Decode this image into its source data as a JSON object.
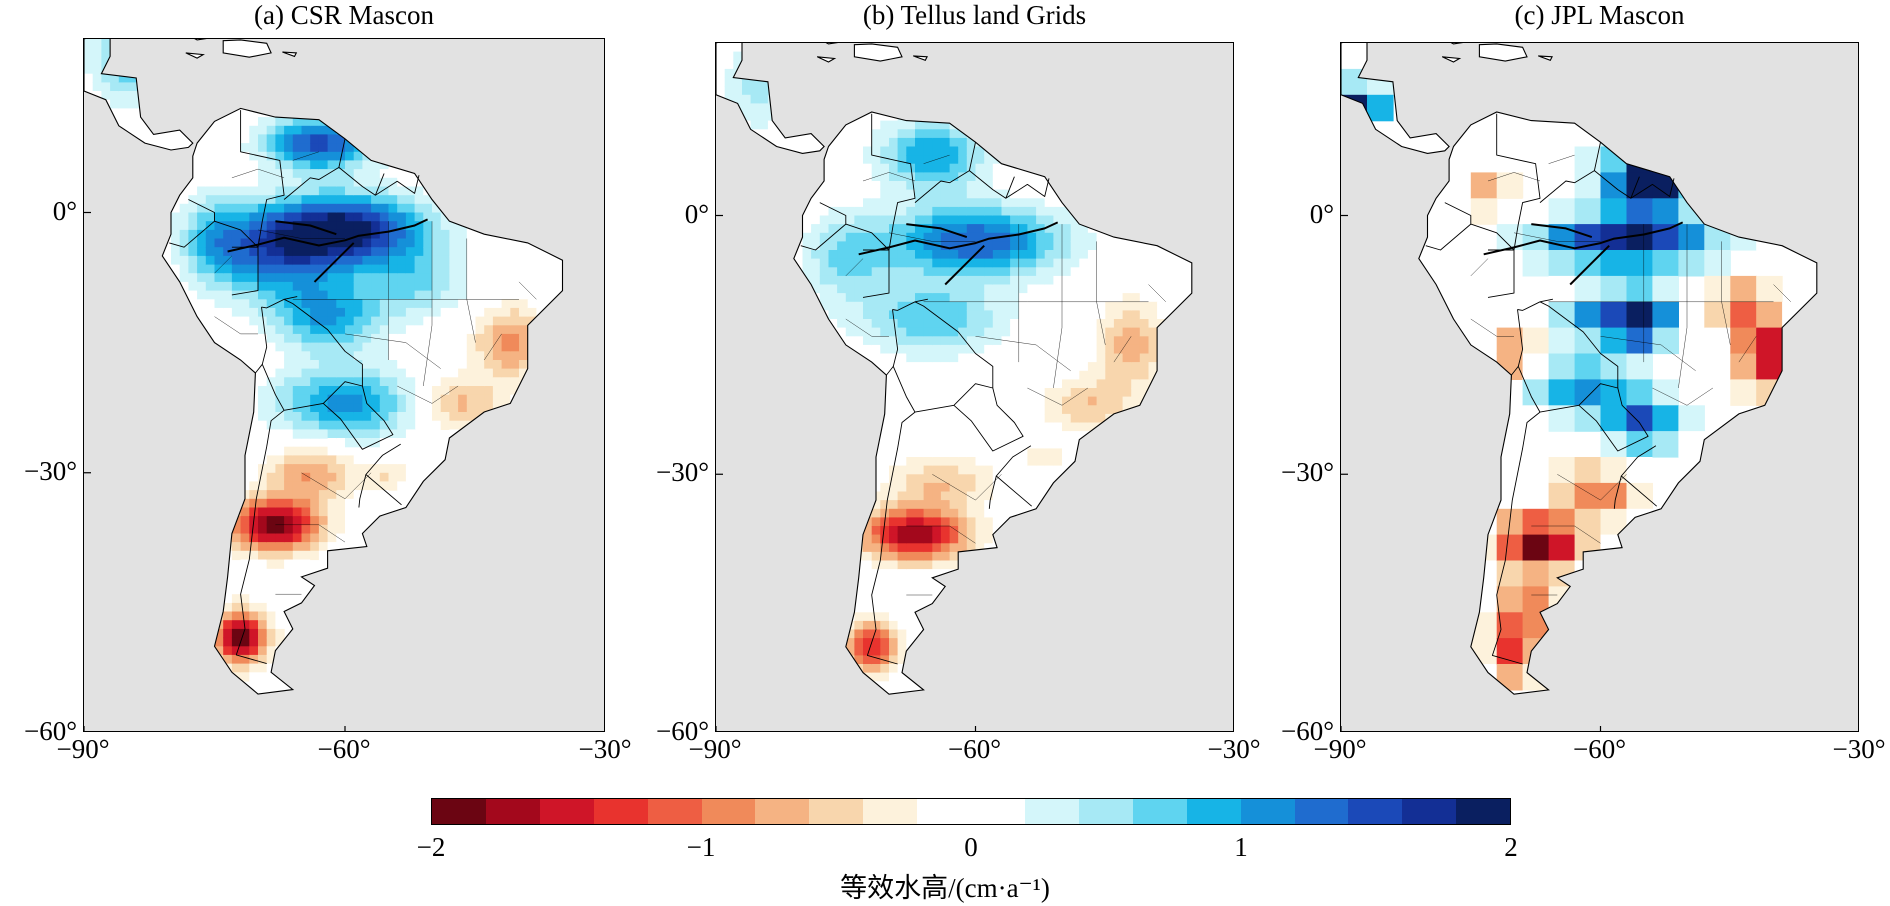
{
  "panels": [
    {
      "title": "(a) CSR Mascon",
      "style": "smooth",
      "blobs": [
        [
          -60,
          -2,
          9,
          4,
          1.9
        ],
        [
          -63,
          8,
          6,
          3,
          1.5
        ],
        [
          -68,
          -5,
          7,
          5,
          1.1
        ],
        [
          -62,
          -12,
          6,
          4,
          1.0
        ],
        [
          -60,
          -22,
          8,
          4,
          1.1
        ],
        [
          -75,
          -3,
          4,
          5,
          0.7
        ],
        [
          -52,
          -8,
          6,
          4,
          0.6
        ],
        [
          -85,
          18,
          4,
          5,
          0.8
        ],
        [
          -41,
          -15,
          4,
          4,
          -0.9
        ],
        [
          -47,
          -22,
          5,
          3,
          -0.7
        ],
        [
          -68,
          -36,
          5,
          3,
          -2.0
        ],
        [
          -64,
          -30,
          5,
          3,
          -0.8
        ],
        [
          -72,
          -49,
          3,
          3,
          -2.0
        ],
        [
          -55,
          -30,
          3,
          2,
          -0.4
        ]
      ]
    },
    {
      "title": "(b) Tellus land Grids",
      "style": "smooth",
      "blobs": [
        [
          -60,
          -3,
          10,
          4,
          1.4
        ],
        [
          -65,
          7,
          6,
          4,
          1.0
        ],
        [
          -65,
          -12,
          8,
          4,
          0.8
        ],
        [
          -75,
          -5,
          5,
          5,
          0.6
        ],
        [
          -85,
          15,
          4,
          5,
          0.5
        ],
        [
          -42,
          -15,
          4,
          5,
          -0.7
        ],
        [
          -47,
          -22,
          5,
          3,
          -0.6
        ],
        [
          -67,
          -37,
          6,
          3,
          -1.8
        ],
        [
          -64,
          -31,
          6,
          3,
          -0.6
        ],
        [
          -72,
          -50,
          3,
          3,
          -1.4
        ],
        [
          -52,
          -28,
          3,
          2,
          -0.3
        ]
      ]
    },
    {
      "title": "(c) JPL Mascon",
      "style": "blocky",
      "blobs": [
        [
          -57,
          -3,
          10,
          3,
          1.8
        ],
        [
          -55,
          4,
          5,
          4,
          1.8
        ],
        [
          -53,
          8,
          3,
          4,
          1.7
        ],
        [
          -60,
          -12,
          5,
          3,
          1.2
        ],
        [
          -55,
          -12,
          3,
          3,
          1.9
        ],
        [
          -62,
          -20,
          6,
          3,
          1.2
        ],
        [
          -55,
          -24,
          4,
          3,
          1.4
        ],
        [
          -88,
          13,
          3,
          2,
          2.0
        ],
        [
          -73,
          3,
          3,
          3,
          -0.7
        ],
        [
          -41,
          -16,
          3,
          4,
          -1.8
        ],
        [
          -44,
          -10,
          3,
          3,
          -1.0
        ],
        [
          -67,
          -38,
          5,
          3,
          -2.0
        ],
        [
          -60,
          -32,
          5,
          3,
          -0.9
        ],
        [
          -70,
          -16,
          3,
          3,
          -1.0
        ],
        [
          -70,
          -50,
          3,
          4,
          -1.4
        ],
        [
          -68,
          -45,
          3,
          3,
          -0.8
        ]
      ]
    }
  ],
  "axes": {
    "y_ticks": [
      {
        "value": 0,
        "label": "0°"
      },
      {
        "value": -30,
        "label": "−30°"
      },
      {
        "value": -60,
        "label": "−60°"
      }
    ],
    "x_ticks": [
      {
        "value": -90,
        "label": "−90°"
      },
      {
        "value": -60,
        "label": "−60°"
      },
      {
        "value": -30,
        "label": "−30°"
      }
    ],
    "lon_range": [
      -90,
      -30
    ],
    "lat_range": [
      -60,
      20
    ]
  },
  "colorbar": {
    "colors": [
      "#6b0512",
      "#a3081c",
      "#cf1528",
      "#e8332e",
      "#ee5e43",
      "#f08a5a",
      "#f5b383",
      "#f8d6ad",
      "#fdf2dc",
      "#ffffff",
      "#ffffff",
      "#d4f6fa",
      "#a7e9f5",
      "#5fd4f0",
      "#17b4e6",
      "#1590d9",
      "#1f6ccf",
      "#1b49b8",
      "#132f95",
      "#0a1f60"
    ],
    "ticks": [
      {
        "value": -2,
        "label": "−2"
      },
      {
        "value": -1,
        "label": "−1"
      },
      {
        "value": 0,
        "label": "0"
      },
      {
        "value": 1,
        "label": "1"
      },
      {
        "value": 2,
        "label": "2"
      }
    ],
    "range": [
      -2,
      2
    ],
    "label": "等效水高/(cm·a⁻¹)"
  },
  "land_color": "#ffffff",
  "ocean_color": "#e2e2e2"
}
